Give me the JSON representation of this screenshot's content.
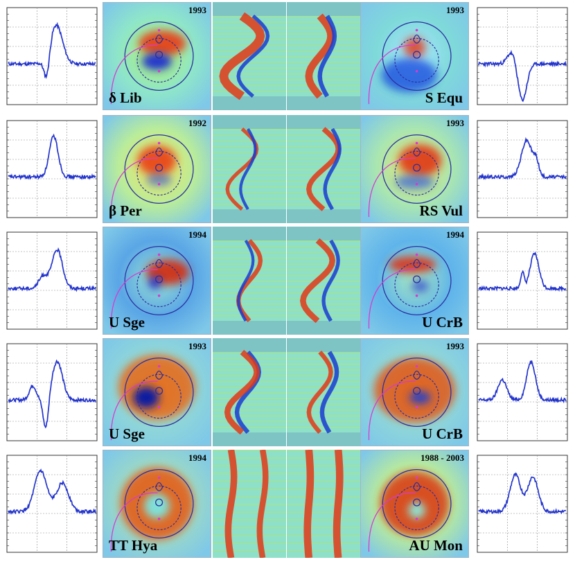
{
  "rows": [
    {
      "left_star": "δ Lib",
      "left_year": "1993",
      "right_star": "S Equ",
      "right_year": "1993"
    },
    {
      "left_star": "β Per",
      "left_year": "1992",
      "right_star": "RS Vul",
      "right_year": "1993"
    },
    {
      "left_star": "U Sge",
      "left_year": "1994",
      "right_star": "U CrB",
      "right_year": "1994"
    },
    {
      "left_star": "U Sge",
      "left_year": "1993",
      "right_star": "U CrB",
      "right_year": "1993"
    },
    {
      "left_star": "TT Hya",
      "left_year": "1994",
      "right_star": "AU Mon",
      "right_year": "1988 - 2003"
    }
  ],
  "colors": {
    "profile_line": "#2233cc",
    "grid": "#8a8a8a",
    "circle": "#2b2fa0",
    "trajectory": "#d63ad0",
    "background_cyan": "#7fe0d8",
    "emission_red": "#d42a10",
    "absorption_blue": "#1a2fcf",
    "panel_band": "#7fc4c4"
  }
}
